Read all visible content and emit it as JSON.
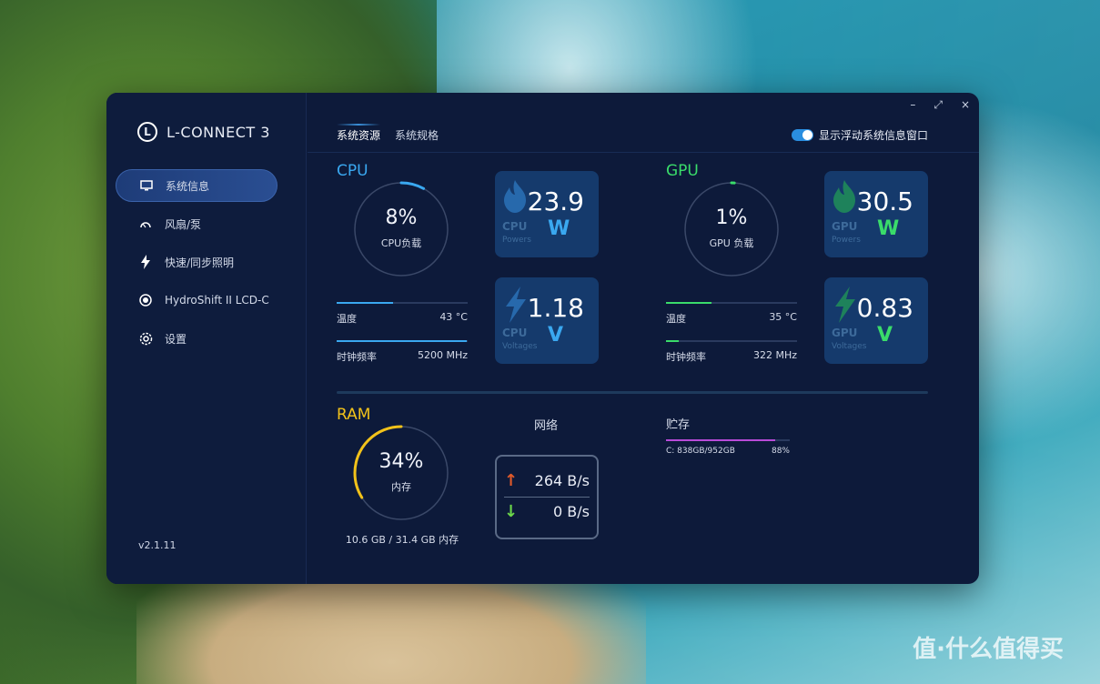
{
  "app": {
    "name": "L-CONNECT 3",
    "version": "v2.1.11",
    "window_controls": [
      "–",
      "⤢",
      "×"
    ]
  },
  "sidebar": {
    "items": [
      {
        "label": "系统信息",
        "icon": "monitor-icon",
        "active": true
      },
      {
        "label": "风扇/泵",
        "icon": "fan-gauge-icon",
        "active": false
      },
      {
        "label": "快速/同步照明",
        "icon": "lightning-icon",
        "active": false
      },
      {
        "label": "HydroShift II LCD-C",
        "icon": "lcd-dial-icon",
        "active": false
      },
      {
        "label": "设置",
        "icon": "gear-icon",
        "active": false
      }
    ]
  },
  "tabs": [
    {
      "label": "系统资源",
      "active": true
    },
    {
      "label": "系统规格",
      "active": false
    }
  ],
  "float_toggle": {
    "label": "显示浮动系统信息窗口",
    "enabled": true
  },
  "cpu": {
    "title": "CPU",
    "load_value": "8%",
    "load_label": "CPU负载",
    "load_fraction": 0.08,
    "temp_label": "温度",
    "temp_value": "43 °C",
    "temp_fraction": 0.43,
    "clock_label": "时钟频率",
    "clock_value": "5200 MHz",
    "clock_fraction": 0.99,
    "power_tile": {
      "value": "23.9",
      "unit": "W",
      "caption": "CPU",
      "sub": "Powers"
    },
    "voltage_tile": {
      "value": "1.18",
      "unit": "V",
      "caption": "CPU",
      "sub": "Voltages"
    },
    "accent": "#3aa8f0"
  },
  "gpu": {
    "title": "GPU",
    "load_value": "1%",
    "load_label": "GPU 负载",
    "load_fraction": 0.01,
    "temp_label": "温度",
    "temp_value": "35 °C",
    "temp_fraction": 0.35,
    "clock_label": "时钟频率",
    "clock_value": "322 MHz",
    "clock_fraction": 0.1,
    "power_tile": {
      "value": "30.5",
      "unit": "W",
      "caption": "GPU",
      "sub": "Powers"
    },
    "voltage_tile": {
      "value": "0.83",
      "unit": "V",
      "caption": "GPU",
      "sub": "Voltages"
    },
    "accent": "#3adc6a"
  },
  "ram": {
    "title": "RAM",
    "value": "34%",
    "label": "内存",
    "fraction": 0.34,
    "usage": "10.6 GB / 31.4 GB 内存",
    "accent": "#f2c21a"
  },
  "network": {
    "title": "网络",
    "upload": "264 B/s",
    "download": "0 B/s"
  },
  "storage": {
    "title": "贮存",
    "drive": "C: 838GB/952GB",
    "percent": "88%",
    "fraction": 0.88,
    "accent": "#b84ad8"
  },
  "watermark": "值·什么值得买"
}
